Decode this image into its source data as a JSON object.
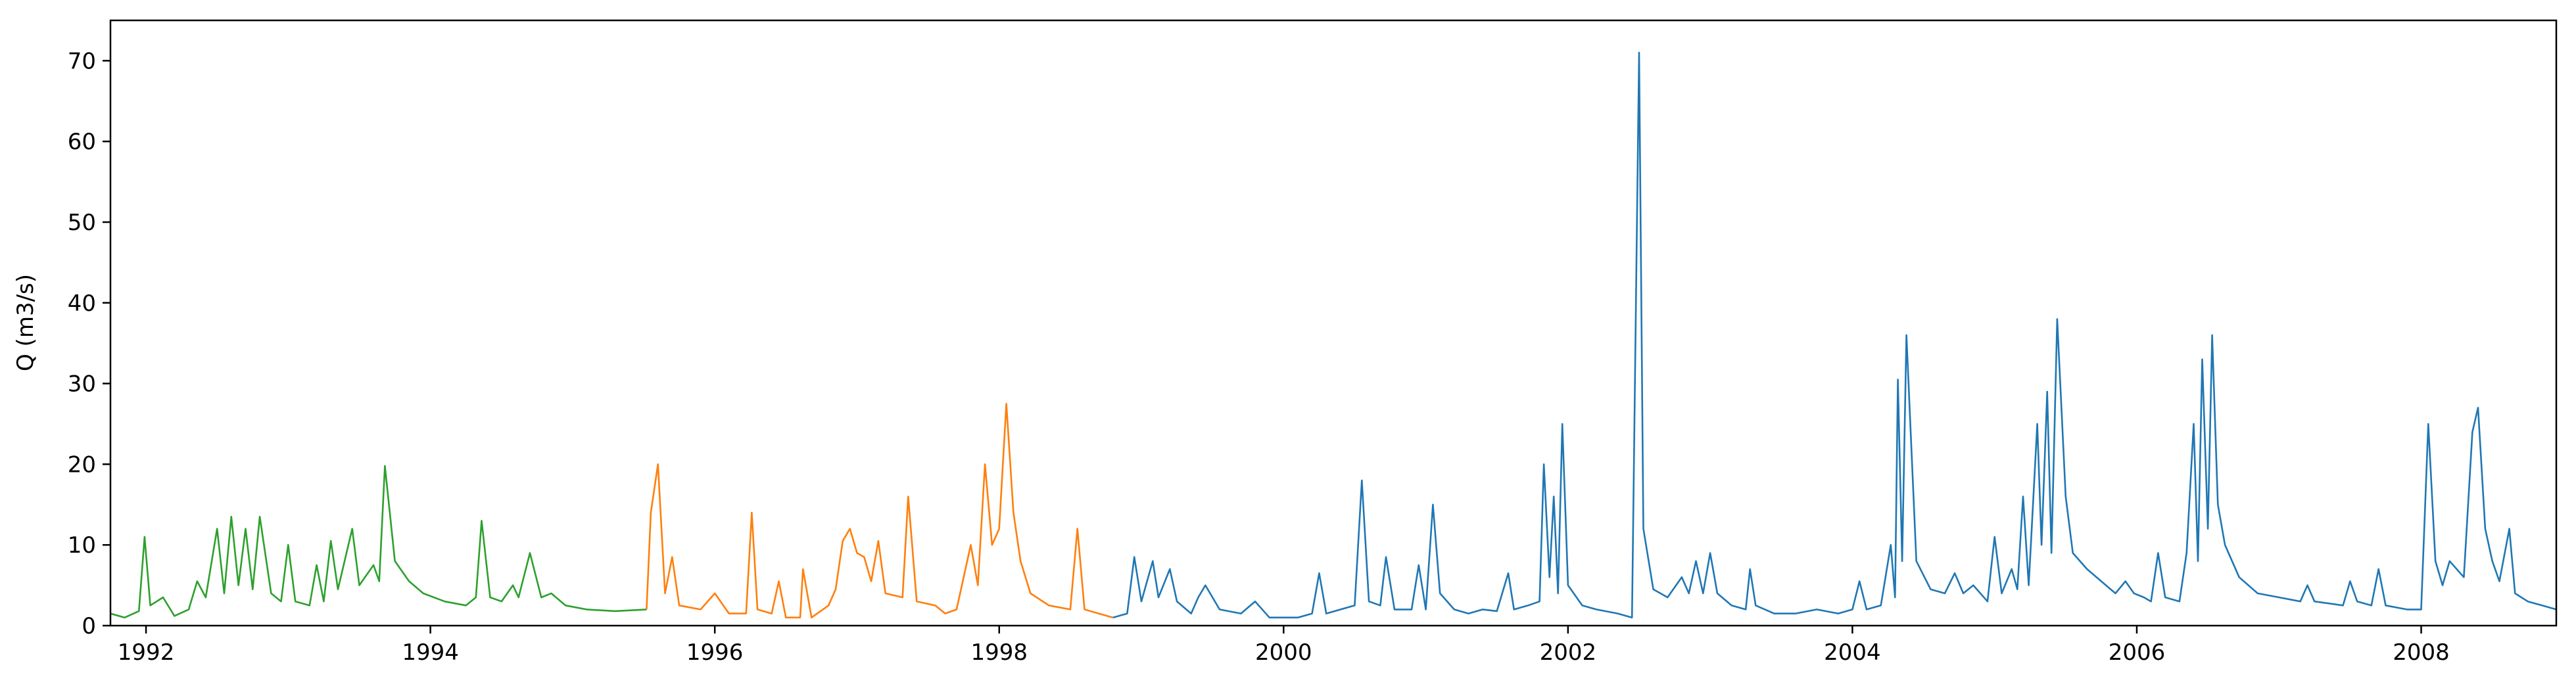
{
  "chart_data": {
    "type": "line",
    "title": "",
    "xlabel": "",
    "ylabel": "Q (m3/s)",
    "xlim": [
      1991.75,
      2008.95
    ],
    "ylim": [
      0,
      75
    ],
    "grid": false,
    "legend": "none",
    "x_ticks": [
      1992,
      1994,
      1996,
      1998,
      2000,
      2002,
      2004,
      2006,
      2008
    ],
    "x_tick_labels": [
      "1992",
      "1994",
      "1996",
      "1998",
      "2000",
      "2002",
      "2004",
      "2006",
      "2008"
    ],
    "y_ticks": [
      0,
      10,
      20,
      30,
      40,
      50,
      60,
      70
    ],
    "y_tick_labels": [
      "0",
      "10",
      "20",
      "30",
      "40",
      "50",
      "60",
      "70"
    ],
    "series": [
      {
        "name": "green",
        "color": "#2ca02c",
        "points": [
          [
            1991.75,
            1.5
          ],
          [
            1991.85,
            1.0
          ],
          [
            1991.95,
            1.8
          ],
          [
            1991.99,
            11.0
          ],
          [
            1992.03,
            2.5
          ],
          [
            1992.12,
            3.5
          ],
          [
            1992.2,
            1.2
          ],
          [
            1992.3,
            2.0
          ],
          [
            1992.36,
            5.5
          ],
          [
            1992.42,
            3.5
          ],
          [
            1992.5,
            12.0
          ],
          [
            1992.55,
            4.0
          ],
          [
            1992.6,
            13.5
          ],
          [
            1992.65,
            5.0
          ],
          [
            1992.7,
            12.0
          ],
          [
            1992.75,
            4.5
          ],
          [
            1992.8,
            13.5
          ],
          [
            1992.88,
            4.0
          ],
          [
            1992.95,
            3.0
          ],
          [
            1993.0,
            10.0
          ],
          [
            1993.05,
            3.0
          ],
          [
            1993.15,
            2.5
          ],
          [
            1993.2,
            7.5
          ],
          [
            1993.25,
            3.0
          ],
          [
            1993.3,
            10.5
          ],
          [
            1993.35,
            4.5
          ],
          [
            1993.45,
            12.0
          ],
          [
            1993.5,
            5.0
          ],
          [
            1993.6,
            7.5
          ],
          [
            1993.64,
            5.5
          ],
          [
            1993.68,
            19.8
          ],
          [
            1993.75,
            8.0
          ],
          [
            1993.85,
            5.5
          ],
          [
            1993.95,
            4.0
          ],
          [
            1994.1,
            3.0
          ],
          [
            1994.25,
            2.5
          ],
          [
            1994.32,
            3.5
          ],
          [
            1994.36,
            13.0
          ],
          [
            1994.42,
            3.5
          ],
          [
            1994.5,
            3.0
          ],
          [
            1994.58,
            5.0
          ],
          [
            1994.62,
            3.5
          ],
          [
            1994.7,
            9.0
          ],
          [
            1994.78,
            3.5
          ],
          [
            1994.85,
            4.0
          ],
          [
            1994.95,
            2.5
          ],
          [
            1995.1,
            2.0
          ],
          [
            1995.3,
            1.8
          ],
          [
            1995.52,
            2.0
          ]
        ]
      },
      {
        "name": "orange",
        "color": "#ff7f0e",
        "points": [
          [
            1995.52,
            2.0
          ],
          [
            1995.55,
            14.0
          ],
          [
            1995.6,
            20.0
          ],
          [
            1995.65,
            4.0
          ],
          [
            1995.7,
            8.5
          ],
          [
            1995.75,
            2.5
          ],
          [
            1995.9,
            2.0
          ],
          [
            1996.0,
            4.0
          ],
          [
            1996.1,
            1.5
          ],
          [
            1996.22,
            1.5
          ],
          [
            1996.26,
            14.0
          ],
          [
            1996.3,
            2.0
          ],
          [
            1996.4,
            1.5
          ],
          [
            1996.45,
            5.5
          ],
          [
            1996.5,
            1.0
          ],
          [
            1996.6,
            1.0
          ],
          [
            1996.62,
            7.0
          ],
          [
            1996.68,
            1.0
          ],
          [
            1996.8,
            2.5
          ],
          [
            1996.85,
            4.5
          ],
          [
            1996.9,
            10.5
          ],
          [
            1996.95,
            12.0
          ],
          [
            1997.0,
            9.0
          ],
          [
            1997.05,
            8.5
          ],
          [
            1997.1,
            5.5
          ],
          [
            1997.15,
            10.5
          ],
          [
            1997.2,
            4.0
          ],
          [
            1997.32,
            3.5
          ],
          [
            1997.36,
            16.0
          ],
          [
            1997.42,
            3.0
          ],
          [
            1997.55,
            2.5
          ],
          [
            1997.62,
            1.5
          ],
          [
            1997.7,
            2.0
          ],
          [
            1997.8,
            10.0
          ],
          [
            1997.85,
            5.0
          ],
          [
            1997.9,
            20.0
          ],
          [
            1997.95,
            10.0
          ],
          [
            1998.0,
            12.0
          ],
          [
            1998.05,
            27.5
          ],
          [
            1998.1,
            14.0
          ],
          [
            1998.15,
            8.0
          ],
          [
            1998.22,
            4.0
          ],
          [
            1998.35,
            2.5
          ],
          [
            1998.5,
            2.0
          ],
          [
            1998.55,
            12.0
          ],
          [
            1998.6,
            2.0
          ],
          [
            1998.7,
            1.5
          ],
          [
            1998.8,
            1.0
          ]
        ]
      },
      {
        "name": "blue",
        "color": "#1f77b4",
        "points": [
          [
            1998.8,
            1.0
          ],
          [
            1998.9,
            1.5
          ],
          [
            1998.95,
            8.5
          ],
          [
            1999.0,
            3.0
          ],
          [
            1999.08,
            8.0
          ],
          [
            1999.12,
            3.5
          ],
          [
            1999.2,
            7.0
          ],
          [
            1999.25,
            3.0
          ],
          [
            1999.35,
            1.5
          ],
          [
            1999.4,
            3.5
          ],
          [
            1999.45,
            5.0
          ],
          [
            1999.55,
            2.0
          ],
          [
            1999.7,
            1.5
          ],
          [
            1999.8,
            3.0
          ],
          [
            1999.9,
            1.0
          ],
          [
            2000.1,
            1.0
          ],
          [
            2000.2,
            1.5
          ],
          [
            2000.25,
            6.5
          ],
          [
            2000.3,
            1.5
          ],
          [
            2000.5,
            2.5
          ],
          [
            2000.55,
            18.0
          ],
          [
            2000.6,
            3.0
          ],
          [
            2000.68,
            2.5
          ],
          [
            2000.72,
            8.5
          ],
          [
            2000.78,
            2.0
          ],
          [
            2000.9,
            2.0
          ],
          [
            2000.95,
            7.5
          ],
          [
            2001.0,
            2.0
          ],
          [
            2001.05,
            15.0
          ],
          [
            2001.1,
            4.0
          ],
          [
            2001.2,
            2.0
          ],
          [
            2001.3,
            1.5
          ],
          [
            2001.4,
            2.0
          ],
          [
            2001.5,
            1.8
          ],
          [
            2001.58,
            6.5
          ],
          [
            2001.62,
            2.0
          ],
          [
            2001.72,
            2.5
          ],
          [
            2001.8,
            3.0
          ],
          [
            2001.83,
            20.0
          ],
          [
            2001.87,
            6.0
          ],
          [
            2001.9,
            16.0
          ],
          [
            2001.93,
            4.0
          ],
          [
            2001.96,
            25.0
          ],
          [
            2002.0,
            5.0
          ],
          [
            2002.1,
            2.5
          ],
          [
            2002.2,
            2.0
          ],
          [
            2002.35,
            1.5
          ],
          [
            2002.45,
            1.0
          ],
          [
            2002.5,
            71.0
          ],
          [
            2002.53,
            12.0
          ],
          [
            2002.6,
            4.5
          ],
          [
            2002.7,
            3.5
          ],
          [
            2002.8,
            6.0
          ],
          [
            2002.85,
            4.0
          ],
          [
            2002.9,
            8.0
          ],
          [
            2002.95,
            4.0
          ],
          [
            2003.0,
            9.0
          ],
          [
            2003.05,
            4.0
          ],
          [
            2003.15,
            2.5
          ],
          [
            2003.25,
            2.0
          ],
          [
            2003.28,
            7.0
          ],
          [
            2003.32,
            2.5
          ],
          [
            2003.45,
            1.5
          ],
          [
            2003.6,
            1.5
          ],
          [
            2003.75,
            2.0
          ],
          [
            2003.9,
            1.5
          ],
          [
            2004.0,
            2.0
          ],
          [
            2004.05,
            5.5
          ],
          [
            2004.1,
            2.0
          ],
          [
            2004.2,
            2.5
          ],
          [
            2004.27,
            10.0
          ],
          [
            2004.3,
            3.5
          ],
          [
            2004.32,
            30.5
          ],
          [
            2004.35,
            8.0
          ],
          [
            2004.38,
            36.0
          ],
          [
            2004.45,
            8.0
          ],
          [
            2004.55,
            4.5
          ],
          [
            2004.65,
            4.0
          ],
          [
            2004.72,
            6.5
          ],
          [
            2004.78,
            4.0
          ],
          [
            2004.85,
            5.0
          ],
          [
            2004.95,
            3.0
          ],
          [
            2005.0,
            11.0
          ],
          [
            2005.05,
            4.0
          ],
          [
            2005.12,
            7.0
          ],
          [
            2005.16,
            4.5
          ],
          [
            2005.2,
            16.0
          ],
          [
            2005.24,
            5.0
          ],
          [
            2005.3,
            25.0
          ],
          [
            2005.33,
            10.0
          ],
          [
            2005.37,
            29.0
          ],
          [
            2005.4,
            9.0
          ],
          [
            2005.44,
            38.0
          ],
          [
            2005.5,
            16.0
          ],
          [
            2005.55,
            9.0
          ],
          [
            2005.65,
            7.0
          ],
          [
            2005.75,
            5.5
          ],
          [
            2005.85,
            4.0
          ],
          [
            2005.92,
            5.5
          ],
          [
            2005.98,
            4.0
          ],
          [
            2006.05,
            3.5
          ],
          [
            2006.1,
            3.0
          ],
          [
            2006.15,
            9.0
          ],
          [
            2006.2,
            3.5
          ],
          [
            2006.3,
            3.0
          ],
          [
            2006.35,
            9.0
          ],
          [
            2006.4,
            25.0
          ],
          [
            2006.43,
            8.0
          ],
          [
            2006.46,
            33.0
          ],
          [
            2006.5,
            12.0
          ],
          [
            2006.53,
            36.0
          ],
          [
            2006.57,
            15.0
          ],
          [
            2006.62,
            10.0
          ],
          [
            2006.72,
            6.0
          ],
          [
            2006.85,
            4.0
          ],
          [
            2007.0,
            3.5
          ],
          [
            2007.15,
            3.0
          ],
          [
            2007.2,
            5.0
          ],
          [
            2007.25,
            3.0
          ],
          [
            2007.45,
            2.5
          ],
          [
            2007.5,
            5.5
          ],
          [
            2007.55,
            3.0
          ],
          [
            2007.65,
            2.5
          ],
          [
            2007.7,
            7.0
          ],
          [
            2007.75,
            2.5
          ],
          [
            2007.9,
            2.0
          ],
          [
            2008.0,
            2.0
          ],
          [
            2008.05,
            25.0
          ],
          [
            2008.1,
            8.0
          ],
          [
            2008.15,
            5.0
          ],
          [
            2008.2,
            8.0
          ],
          [
            2008.3,
            6.0
          ],
          [
            2008.36,
            24.0
          ],
          [
            2008.4,
            27.0
          ],
          [
            2008.45,
            12.0
          ],
          [
            2008.5,
            8.0
          ],
          [
            2008.55,
            5.5
          ],
          [
            2008.62,
            12.0
          ],
          [
            2008.66,
            4.0
          ],
          [
            2008.75,
            3.0
          ],
          [
            2008.85,
            2.5
          ],
          [
            2008.95,
            2.0
          ]
        ]
      }
    ]
  }
}
